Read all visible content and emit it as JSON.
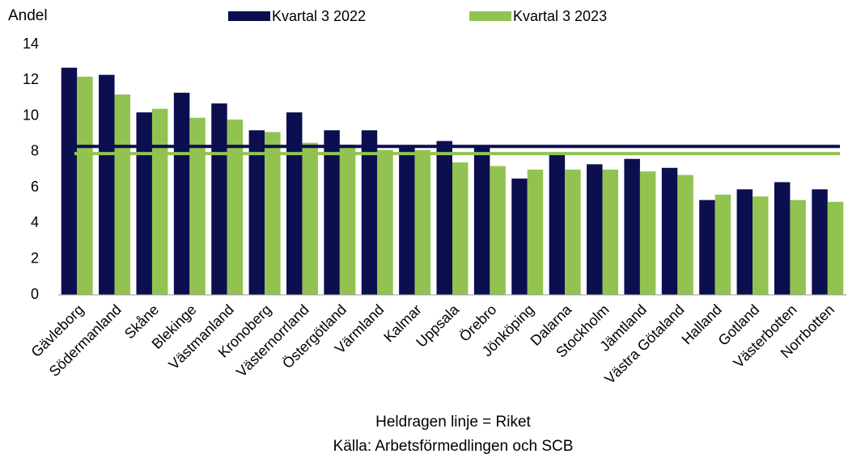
{
  "chart_data": {
    "type": "bar",
    "y_label": "Andel",
    "categories": [
      "Gävleborg",
      "Södermanland",
      "Skåne",
      "Blekinge",
      "Västmanland",
      "Kronoberg",
      "Västernorrland",
      "Östergötland",
      "Värmland",
      "Kalmar",
      "Uppsala",
      "Örebro",
      "Jönköping",
      "Dalarna",
      "Stockholm",
      "Jämtland",
      "Västra Götaland",
      "Halland",
      "Gotland",
      "Västerbotten",
      "Norrbotten"
    ],
    "series": [
      {
        "name": "Kvartal 3 2022",
        "color": "#0b0f4f",
        "values": [
          12.7,
          12.3,
          10.2,
          11.3,
          10.7,
          9.2,
          10.2,
          9.2,
          9.2,
          8.3,
          8.6,
          8.3,
          6.5,
          7.9,
          7.3,
          7.6,
          7.1,
          5.3,
          5.9,
          6.3,
          5.9
        ]
      },
      {
        "name": "Kvartal 3 2023",
        "color": "#92c351",
        "values": [
          12.2,
          11.2,
          10.4,
          9.9,
          9.8,
          9.1,
          8.5,
          8.4,
          8.1,
          8.1,
          7.4,
          7.2,
          7.0,
          7.0,
          7.0,
          6.9,
          6.7,
          5.6,
          5.5,
          5.3,
          5.2
        ]
      }
    ],
    "reference_lines": [
      {
        "color": "#0b0f4f",
        "value": 8.3
      },
      {
        "color": "#92c351",
        "value": 7.9
      }
    ],
    "notes": [
      "Heldragen linje = Riket",
      "Källa: Arbetsförmedlingen och SCB"
    ],
    "ylim": [
      0,
      14
    ],
    "yticks": [
      0,
      2,
      4,
      6,
      8,
      10,
      12,
      14
    ],
    "grid": false
  }
}
